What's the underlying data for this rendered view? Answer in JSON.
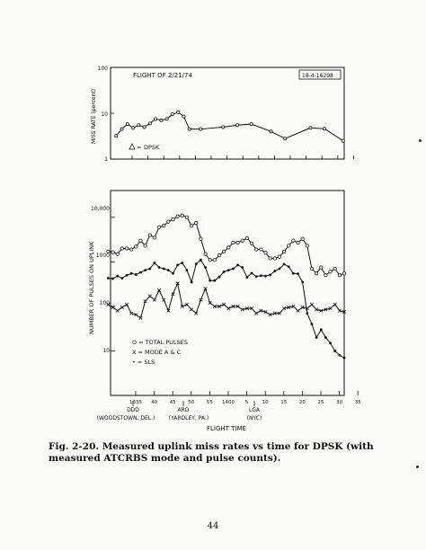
{
  "page_number": "44",
  "caption": {
    "label": "Fig. 2-20.",
    "text": "Measured uplink miss rates vs time for DPSK (with measured ATCRBS mode and pulse counts)."
  },
  "chart_data": [
    {
      "type": "line",
      "title": "FLIGHT OF 2/21/74",
      "ref_id": "18-4-16298",
      "ylabel": "MISS RATE (percent)",
      "yscale": "log",
      "ylim": [
        1,
        100
      ],
      "yticks": [
        "100",
        "10",
        "1"
      ],
      "x": [
        1,
        2,
        3,
        4,
        5,
        6,
        7,
        8,
        9,
        10,
        11,
        12,
        13,
        14,
        15,
        16,
        17,
        18,
        19,
        20,
        21,
        22,
        23
      ],
      "xlim": [
        0,
        41.5
      ],
      "series": [
        {
          "name": "DPSK",
          "marker": "triangle",
          "x": [
            1,
            2,
            3,
            4,
            5,
            6,
            7,
            8,
            9,
            10,
            11,
            12,
            13,
            14,
            16,
            20,
            22.5,
            25,
            28.5,
            31,
            35.5,
            38,
            41.3
          ],
          "values": [
            3.2,
            4.5,
            5.8,
            4.8,
            5.5,
            5.0,
            6.0,
            7.5,
            7.0,
            7.5,
            9.5,
            10.5,
            8.5,
            4.5,
            4.5,
            5.0,
            5.5,
            5.8,
            4.0,
            2.8,
            4.8,
            4.6,
            2.5
          ]
        }
      ],
      "legend": "DPSK"
    },
    {
      "type": "line",
      "ylabel": "NUMBER OF PULSES ON UPLINK",
      "xlabel": "FLIGHT TIME",
      "yscale": "log",
      "ylim": [
        1,
        40000
      ],
      "yticks": [
        "10,000",
        "1000",
        "100",
        "10"
      ],
      "xticks": [
        "1335",
        "40",
        "45",
        "50",
        "55",
        "1400",
        "5",
        "10",
        "15",
        "20",
        "25",
        "30",
        "35"
      ],
      "xlim": [
        1335,
        1436
      ],
      "annotations": [
        {
          "code": "DDD",
          "place": "(WOODSTOWN, DEL.)",
          "x": 1335
        },
        {
          "code": "ARD",
          "place": "(YARDLEY, PA.)",
          "x": 1355
        },
        {
          "code": "LGA",
          "place": "(NYC)",
          "x": 1412
        }
      ],
      "legend_entries": [
        "O = TOTAL PULSES",
        "X = MODE A & C",
        "• = SLS"
      ],
      "series": [
        {
          "name": "TOTAL PULSES",
          "marker": "circle",
          "x": [
            1334,
            1336,
            1338,
            1340,
            1342,
            1344,
            1346,
            1348,
            1350,
            1352,
            1354,
            1356,
            1358,
            1360,
            1362,
            1364,
            1366,
            1368,
            1370,
            1372,
            1374,
            1376,
            1378,
            1380,
            1382,
            1384,
            1386,
            1388,
            1390,
            1392,
            1394,
            1396,
            1398,
            1400,
            1402,
            1404,
            1406,
            1408,
            1410,
            1412,
            1414,
            1416,
            1418,
            1420,
            1422,
            1424,
            1426,
            1428,
            1430,
            1432,
            1434,
            1436
          ],
          "values": [
            1700,
            1650,
            1500,
            2000,
            2000,
            1900,
            2200,
            3000,
            2300,
            4000,
            3500,
            6000,
            6500,
            8000,
            9000,
            10500,
            11000,
            10000,
            6500,
            7500,
            3300,
            1500,
            1100,
            1100,
            1400,
            1700,
            2100,
            2700,
            2700,
            3000,
            3400,
            2600,
            1900,
            1900,
            1600,
            1200,
            1200,
            1300,
            1700,
            2300,
            3000,
            2700,
            3300,
            2300,
            700,
            550,
            750,
            500,
            600,
            700,
            500,
            550
          ]
        },
        {
          "name": "MODE A & C",
          "marker": "x",
          "x": [
            1334,
            1336,
            1338,
            1340,
            1342,
            1344,
            1346,
            1348,
            1350,
            1352,
            1354,
            1356,
            1358,
            1360,
            1362,
            1364,
            1366,
            1368,
            1370,
            1372,
            1374,
            1376,
            1378,
            1380,
            1382,
            1384,
            1386,
            1388,
            1390,
            1392,
            1394,
            1396,
            1398,
            1400,
            1402,
            1404,
            1406,
            1408,
            1410,
            1412,
            1414,
            1416,
            1418,
            1420,
            1422,
            1424,
            1426,
            1428,
            1430,
            1432,
            1434,
            1436
          ],
          "values": [
            110,
            95,
            80,
            95,
            110,
            70,
            65,
            55,
            130,
            170,
            140,
            230,
            140,
            80,
            190,
            330,
            100,
            110,
            85,
            70,
            140,
            250,
            120,
            100,
            100,
            110,
            90,
            100,
            100,
            85,
            90,
            90,
            70,
            80,
            75,
            65,
            70,
            70,
            90,
            95,
            100,
            80,
            95,
            90,
            110,
            85,
            80,
            85,
            90,
            110,
            80,
            75
          ]
        },
        {
          "name": "SLS",
          "marker": "dot",
          "x": [
            1334,
            1336,
            1338,
            1340,
            1342,
            1344,
            1346,
            1348,
            1350,
            1352,
            1354,
            1356,
            1358,
            1360,
            1362,
            1364,
            1366,
            1368,
            1370,
            1372,
            1374,
            1376,
            1378,
            1380,
            1382,
            1384,
            1386,
            1388,
            1390,
            1392,
            1394,
            1396,
            1398,
            1400,
            1402,
            1404,
            1406,
            1408,
            1410,
            1412,
            1414,
            1416,
            1418,
            1420,
            1422,
            1424,
            1426,
            1428,
            1430,
            1432,
            1434,
            1436
          ],
          "values": [
            430,
            420,
            480,
            430,
            500,
            550,
            520,
            580,
            650,
            700,
            950,
            750,
            700,
            650,
            550,
            850,
            950,
            650,
            350,
            900,
            1100,
            750,
            380,
            380,
            460,
            600,
            650,
            700,
            850,
            750,
            450,
            560,
            470,
            490,
            480,
            510,
            620,
            700,
            890,
            780,
            550,
            540,
            350,
            70,
            40,
            20,
            30,
            20,
            15,
            10,
            8,
            7
          ]
        }
      ]
    }
  ]
}
